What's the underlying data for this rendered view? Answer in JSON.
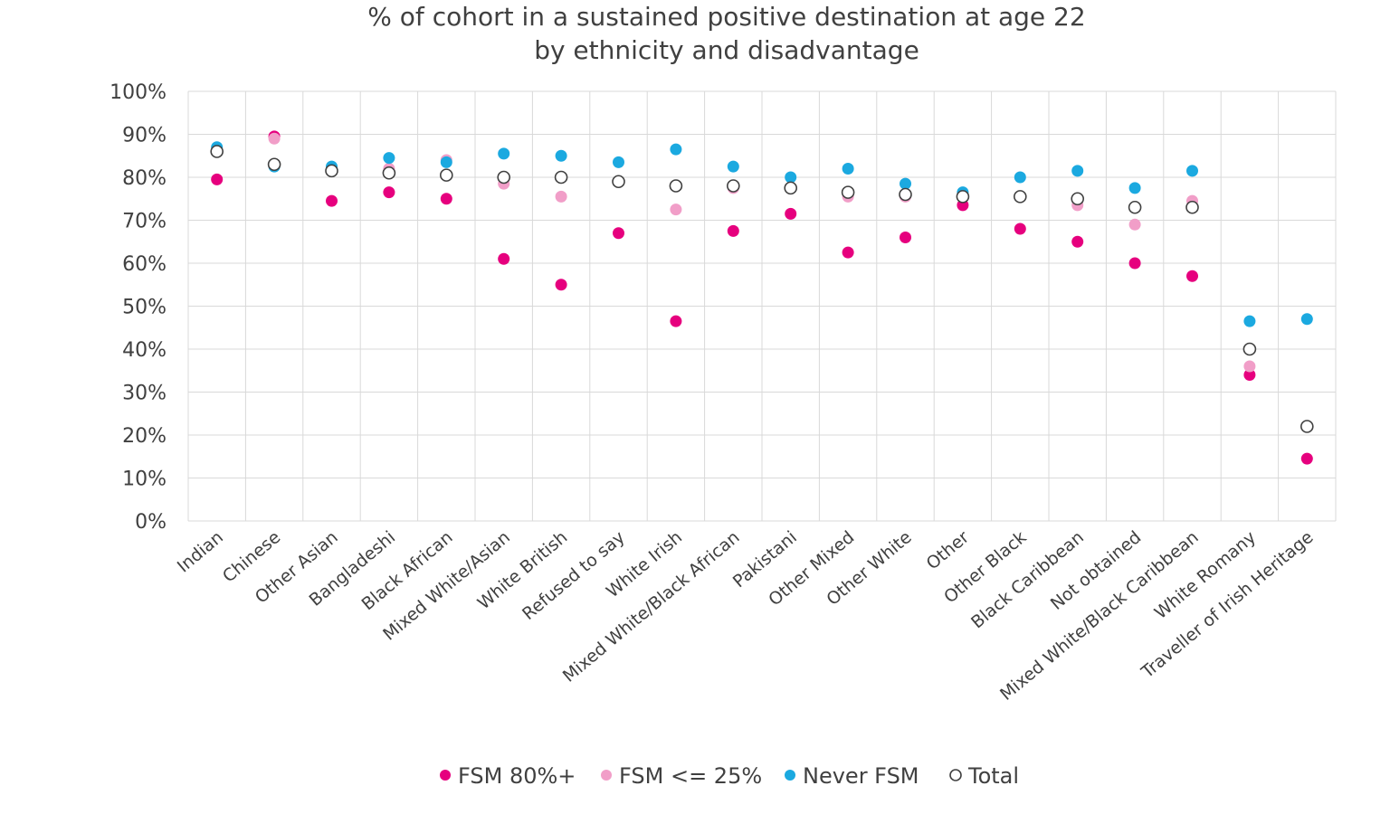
{
  "chart_data": {
    "type": "scatter",
    "title": [
      "% of cohort in a sustained positive destination at age 22",
      "by ethnicity and disadvantage"
    ],
    "xlabel": "",
    "ylabel": "",
    "ylim": [
      0,
      100
    ],
    "yticks": [
      "0%",
      "10%",
      "20%",
      "30%",
      "40%",
      "50%",
      "60%",
      "70%",
      "80%",
      "90%",
      "100%"
    ],
    "grid": true,
    "legend_position": "bottom",
    "categories": [
      "Indian",
      "Chinese",
      "Other Asian",
      "Bangladeshi",
      "Black African",
      "Mixed White/Asian",
      "White British",
      "Refused to say",
      "White Irish",
      "Mixed White/Black African",
      "Pakistani",
      "Other Mixed",
      "Other White",
      "Other",
      "Other Black",
      "Black Caribbean",
      "Not obtained",
      "Mixed White/Black Caribbean",
      "White Romany",
      "Traveller of Irish Heritage"
    ],
    "series": [
      {
        "name": "FSM 80%+",
        "color": "#e6007e",
        "marker": "filled",
        "values": [
          79.5,
          89.5,
          74.5,
          76.5,
          75,
          61,
          55,
          67,
          46.5,
          67.5,
          71.5,
          62.5,
          66,
          73.5,
          68,
          65,
          60,
          57,
          34,
          14.5
        ]
      },
      {
        "name": "FSM <= 25%",
        "color": "#f19ec8",
        "marker": "filled",
        "values": [
          86.5,
          89,
          81.5,
          82,
          84,
          78.5,
          75.5,
          null,
          72.5,
          77.5,
          77.5,
          75.5,
          75.5,
          75.5,
          null,
          73.5,
          69,
          74.5,
          36,
          null
        ]
      },
      {
        "name": "Never FSM",
        "color": "#1ba9e0",
        "marker": "filled",
        "values": [
          87,
          82.5,
          82.5,
          84.5,
          83.5,
          85.5,
          85,
          83.5,
          86.5,
          82.5,
          80,
          82,
          78.5,
          76.5,
          80,
          81.5,
          77.5,
          81.5,
          46.5,
          47
        ]
      },
      {
        "name": "Total",
        "color": "#404040",
        "marker": "hollow",
        "values": [
          86,
          83,
          81.5,
          81,
          80.5,
          80,
          80,
          79,
          78,
          78,
          77.5,
          76.5,
          76,
          75.5,
          75.5,
          75,
          73,
          73,
          40,
          22
        ]
      }
    ]
  }
}
